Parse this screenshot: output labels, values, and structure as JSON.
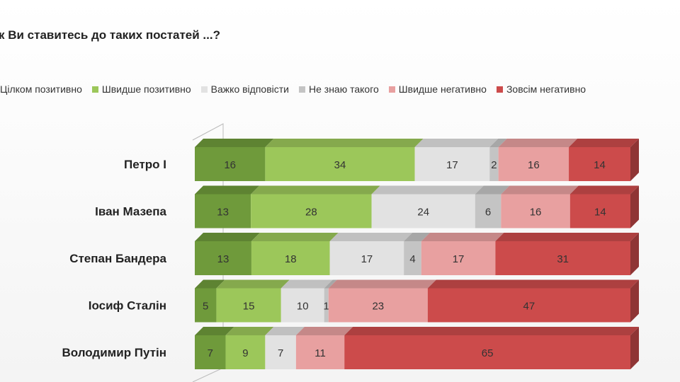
{
  "chart_data": {
    "type": "bar",
    "orientation": "horizontal",
    "stacked": true,
    "style": "3d",
    "title": "к Ви ставитесь до таких постатей ...?",
    "categories": [
      "Петро І",
      "Іван Мазепа",
      "Степан Бандера",
      "Іосиф Сталін",
      "Володимир Путін"
    ],
    "series": [
      {
        "name": "Цілком позитивно",
        "color": "#6f9a3b",
        "values": [
          16,
          13,
          13,
          5,
          7
        ]
      },
      {
        "name": "Швидше позитивно",
        "color": "#9cc75a",
        "values": [
          34,
          28,
          18,
          15,
          9
        ]
      },
      {
        "name": "Важко відповісти",
        "color": "#e2e2e2",
        "values": [
          17,
          24,
          17,
          10,
          7
        ]
      },
      {
        "name": "Не знаю такого",
        "color": "#c4c4c4",
        "values": [
          2,
          6,
          4,
          1,
          0
        ]
      },
      {
        "name": "Швидше негативно",
        "color": "#e8a0a0",
        "values": [
          16,
          16,
          17,
          23,
          11
        ]
      },
      {
        "name": "Зовсім негативно",
        "color": "#cc4b4b",
        "values": [
          14,
          14,
          31,
          47,
          65
        ]
      }
    ],
    "legend_position": "top",
    "grid": false
  }
}
